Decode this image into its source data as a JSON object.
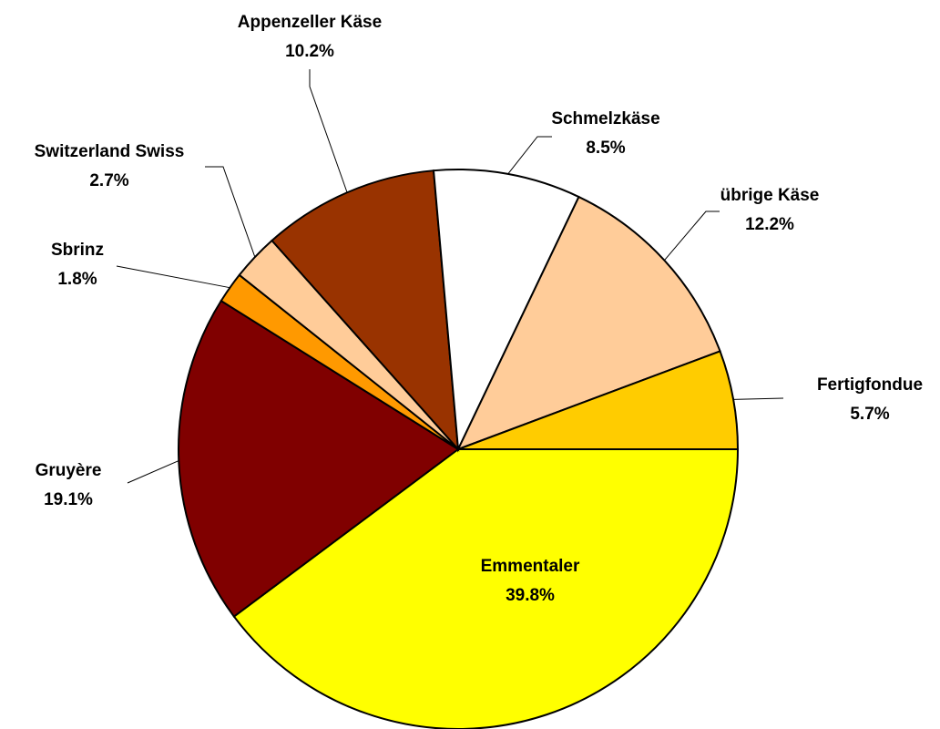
{
  "chart_data": {
    "type": "pie",
    "categories": [
      "Emmentaler",
      "Gruyère",
      "Sbrinz",
      "Switzerland Swiss",
      "Appenzeller Käse",
      "Schmelzkäse",
      "übrige Käse",
      "Fertigfondue"
    ],
    "values": [
      39.8,
      19.1,
      1.8,
      2.7,
      10.2,
      8.5,
      12.2,
      5.7
    ],
    "value_labels": [
      "39.8%",
      "19.1%",
      "1.8%",
      "2.7%",
      "10.2%",
      "8.5%",
      "12.2%",
      "5.7%"
    ],
    "colors": [
      "#ffff00",
      "#800000",
      "#ff9900",
      "#ffcc99",
      "#993300",
      "#ffffff",
      "#ffcc99",
      "#ffcc00"
    ]
  }
}
